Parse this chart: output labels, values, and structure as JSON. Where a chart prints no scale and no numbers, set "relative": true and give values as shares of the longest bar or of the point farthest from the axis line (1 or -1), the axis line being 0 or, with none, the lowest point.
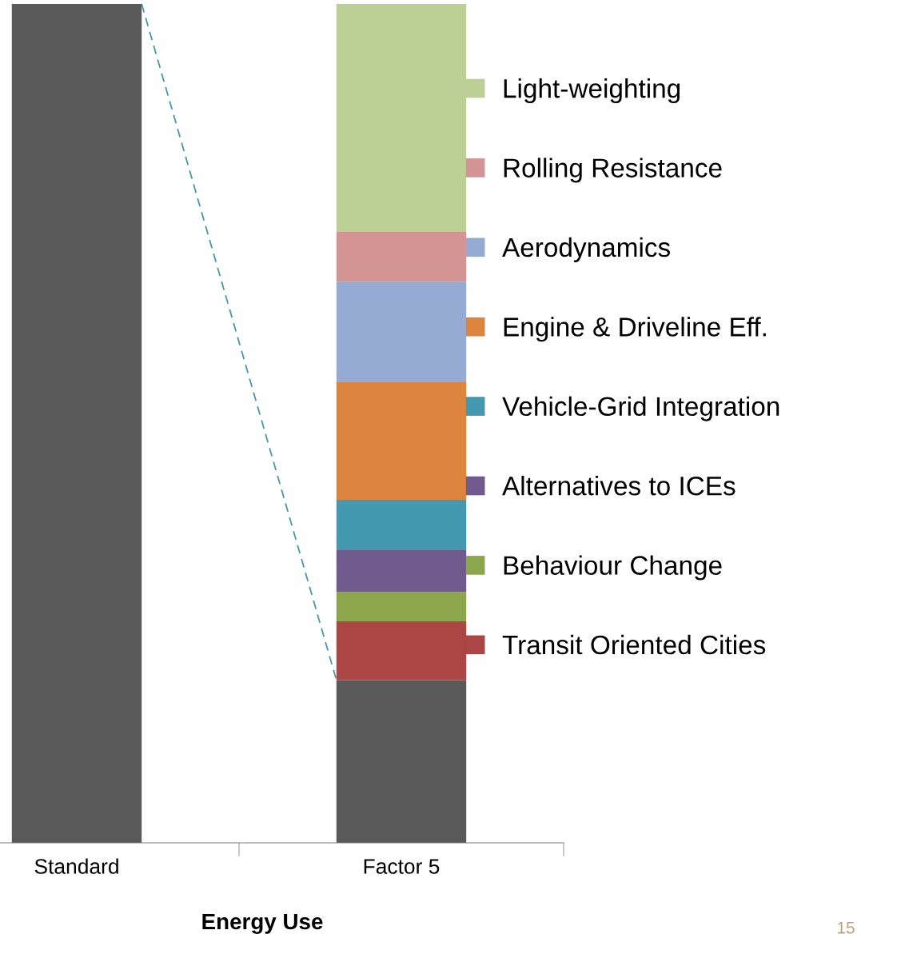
{
  "chart_data": {
    "type": "bar",
    "stacked": true,
    "relative": true,
    "xlabel": "Energy Use",
    "categories": [
      "Standard",
      "Factor 5"
    ],
    "series": [
      {
        "color": "#595959",
        "values": [
          1.0,
          0.194
        ]
      },
      {
        "name": "Transit Oriented Cities",
        "color": "#ab4644",
        "values": [
          null,
          0.07
        ]
      },
      {
        "name": "Behaviour Change",
        "color": "#8ca64c",
        "values": [
          null,
          0.035
        ]
      },
      {
        "name": "Alternatives to ICEs",
        "color": "#715a8e",
        "values": [
          null,
          0.05
        ]
      },
      {
        "name": "Vehicle-Grid Integration",
        "color": "#4299b0",
        "values": [
          null,
          0.06
        ]
      },
      {
        "name": "Engine & Driveline Eff.",
        "color": "#dd843f",
        "values": [
          null,
          0.14
        ]
      },
      {
        "name": "Aerodynamics",
        "color": "#95abd3",
        "values": [
          null,
          0.12
        ]
      },
      {
        "name": "Rolling Resistance",
        "color": "#d49494",
        "values": [
          null,
          0.06
        ]
      },
      {
        "name": "Light-weighting",
        "color": "#bcd096",
        "values": [
          null,
          0.271
        ]
      }
    ],
    "legend": "right",
    "grid": false,
    "annotations": [
      "15"
    ]
  }
}
